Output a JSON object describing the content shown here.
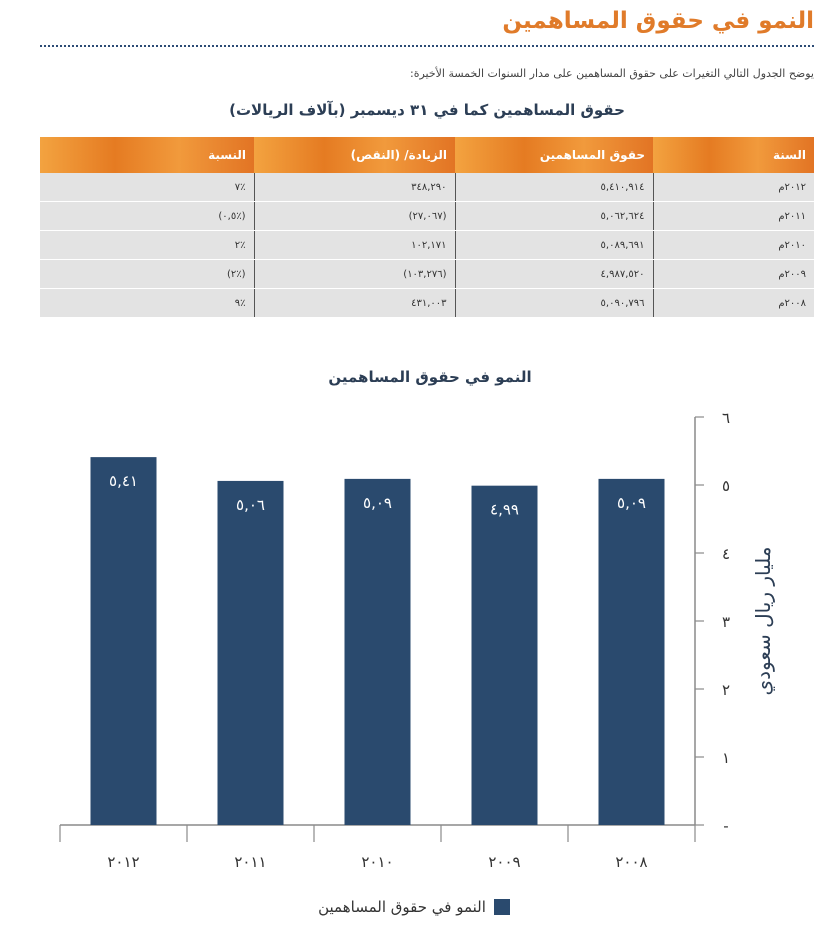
{
  "page": {
    "title": "النمو في حقوق المساهمين",
    "intro": "يوضح الجدول التالي التغيرات على حقوق المساهمين على مدار السنوات الخمسة الأخيرة:"
  },
  "table": {
    "title": "حقوق المساهمين كما في ٣١ ديسمبر (بآلاف الريالات)",
    "headers": [
      "السنة",
      "حقوق المساهمين",
      "الزيادة/ (النقص)",
      "النسبة"
    ],
    "rows": [
      [
        "٢٠١٢م",
        "٥,٤١٠,٩١٤",
        "٣٤٨,٢٩٠",
        "٪٧"
      ],
      [
        "٢٠١١م",
        "٥,٠٦٢,٦٢٤",
        "(٢٧,٠٦٧)",
        "(٪٠,٥)"
      ],
      [
        "٢٠١٠م",
        "٥,٠٨٩,٦٩١",
        "١٠٢,١٧١",
        "٪٢"
      ],
      [
        "٢٠٠٩م",
        "٤,٩٨٧,٥٢٠",
        "(١٠٣,٢٧٦)",
        "(٪٢)"
      ],
      [
        "٢٠٠٨م",
        "٥,٠٩٠,٧٩٦",
        "٤٣١,٠٠٣",
        "٪٩"
      ]
    ]
  },
  "chart_data": {
    "type": "bar",
    "title": "النمو في حقوق المساهمين",
    "categories": [
      "٢٠١٢",
      "٢٠١١",
      "٢٠١٠",
      "٢٠٠٩",
      "٢٠٠٨"
    ],
    "values": [
      5.41,
      5.06,
      5.09,
      4.99,
      5.09
    ],
    "value_labels": [
      "٥,٤١",
      "٥,٠٦",
      "٥,٠٩",
      "٤,٩٩",
      "٥,٠٩"
    ],
    "ylabel": "مليار ريال سعودي",
    "ylim": [
      0,
      6
    ],
    "y_ticks": [
      {
        "value": 0,
        "label": "-"
      },
      {
        "value": 1,
        "label": "١"
      },
      {
        "value": 2,
        "label": "٢"
      },
      {
        "value": 3,
        "label": "٣"
      },
      {
        "value": 4,
        "label": "٤"
      },
      {
        "value": 5,
        "label": "٥"
      },
      {
        "value": 6,
        "label": "٦"
      }
    ],
    "y_axis_position": "right",
    "legend": {
      "label": "النمو في حقوق المساهمين",
      "position": "bottom-center"
    },
    "colors": {
      "bar": "#2a4a6e",
      "axis": "#8a8a8a",
      "bar_label": "#ffffff"
    },
    "grid": false
  }
}
